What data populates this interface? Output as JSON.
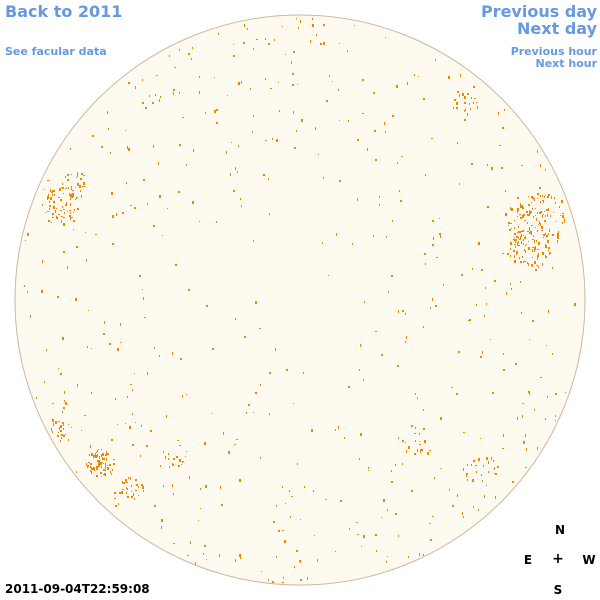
{
  "nav": {
    "back_label": "Back to 2011",
    "facular_label": "See facular data",
    "previous_day_label": "Previous day",
    "next_day_label": "Next day",
    "previous_hour_label": "Previous hour",
    "next_hour_label": "Next hour"
  },
  "timestamp": "2011-09-04T22:59:08",
  "compass": {
    "north": "N",
    "east": "E",
    "center": "+",
    "west": "W",
    "south": "S"
  },
  "colors": {
    "link": "#6699dd",
    "disk_fill": "#fffaf0",
    "disk_border": "#c9b9a3",
    "feature": "#ee8800"
  }
}
